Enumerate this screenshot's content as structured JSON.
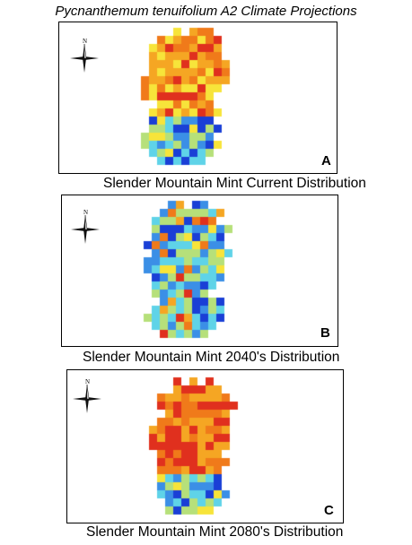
{
  "title": "Pycnanthemum tenuifolium A2 Climate Projections",
  "compass_label": "N",
  "panels": [
    {
      "letter": "A",
      "caption": "Slender Mountain Mint Current Distribution",
      "scenario": "current"
    },
    {
      "letter": "B",
      "caption": "Slender Mountain Mint 2040's Distribution",
      "scenario": "2040s"
    },
    {
      "letter": "C",
      "caption": "Slender Mountain Mint 2080's Distribution",
      "scenario": "2080s"
    }
  ],
  "colors": {
    "dark_blue": "#1a3fd6",
    "blue": "#3b8fe6",
    "cyan": "#5fd3e8",
    "green": "#b6e07a",
    "yellow": "#f7e43a",
    "orange": "#f5a623",
    "dark_orange": "#f07a1a",
    "red": "#e0301e"
  }
}
